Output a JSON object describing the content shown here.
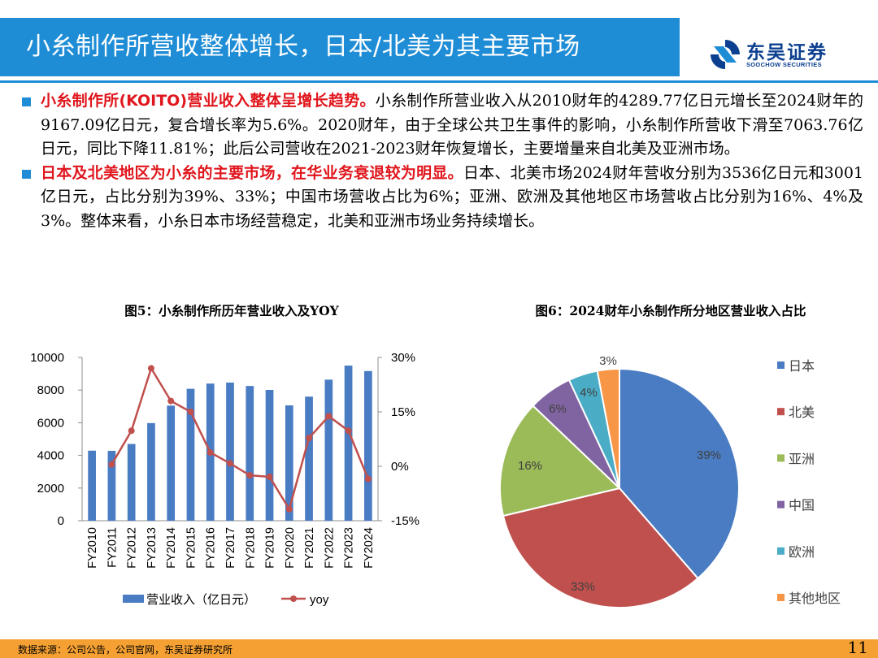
{
  "header": {
    "title": "小糸制作所营收整体增长，日本/北美为其主要市场",
    "logo_name": "东吴证券",
    "logo_sub": "SOOCHOW SECURITIES"
  },
  "paragraphs": [
    {
      "highlight": "小糸制作所(KOITO)营业收入整体呈增长趋势。",
      "body": "小糸制作所营业收入从2010财年的4289.77亿日元增长至2024财年的9167.09亿日元，复合增长率为5.6%。2020财年，由于全球公共卫生事件的影响，小糸制作所营收下滑至7063.76亿日元，同比下降11.81%；此后公司营收在2021-2023财年恢复增长，主要增量来自北美及亚洲市场。"
    },
    {
      "highlight": "日本及北美地区为小糸的主要市场，在华业务衰退较为明显。",
      "body": "日本、北美市场2024财年营收分别为3536亿日元和3001亿日元，占比分别为39%、33%；中国市场营收占比为6%；亚洲、欧洲及其他地区市场营收占比分别为16%、4%及3%。整体来看，小糸日本市场经营稳定，北美和亚洲市场业务持续增长。"
    }
  ],
  "figures": {
    "fig5_title": "图5：小糸制作所历年营业收入及YOY",
    "fig6_title": "图6：2024财年小糸制作所分地区营业收入占比"
  },
  "chart_data": [
    {
      "type": "bar",
      "title": "图5：小糸制作所历年营业收入及YOY",
      "categories": [
        "FY2010",
        "FY2011",
        "FY2012",
        "FY2013",
        "FY2014",
        "FY2015",
        "FY2016",
        "FY2017",
        "FY2018",
        "FY2019",
        "FY2020",
        "FY2021",
        "FY2022",
        "FY2023",
        "FY2024"
      ],
      "series": [
        {
          "name": "营业收入（亿日元）",
          "type": "bar",
          "axis": "left",
          "color": "#4a7cc3",
          "values": [
            4290,
            4280,
            4700,
            5980,
            7050,
            8080,
            8400,
            8460,
            8250,
            8010,
            7064,
            7600,
            8640,
            9500,
            9167
          ]
        },
        {
          "name": "yoy",
          "type": "line",
          "axis": "right",
          "color": "#c0504d",
          "values": [
            null,
            0.5,
            9.8,
            27.0,
            18.0,
            15.0,
            3.8,
            0.8,
            -2.5,
            -2.9,
            -11.81,
            7.8,
            13.8,
            9.8,
            -3.5
          ]
        }
      ],
      "y_left": {
        "min": 0,
        "max": 10000,
        "ticks": [
          "0",
          "2000",
          "4000",
          "6000",
          "8000",
          "10000"
        ]
      },
      "y_right": {
        "min": -15,
        "max": 30,
        "ticks": [
          "-15%",
          "0%",
          "15%",
          "30%"
        ]
      }
    },
    {
      "type": "pie",
      "title": "图6：2024财年小糸制作所分地区营业收入占比",
      "slices": [
        {
          "label": "日本",
          "value": 39,
          "text": "39%",
          "color": "#4a7cc3"
        },
        {
          "label": "北美",
          "value": 33,
          "text": "33%",
          "color": "#c0504d"
        },
        {
          "label": "亚洲",
          "value": 16,
          "text": "16%",
          "color": "#9bbb59"
        },
        {
          "label": "中国",
          "value": 6,
          "text": "6%",
          "color": "#8064a2"
        },
        {
          "label": "欧洲",
          "value": 4,
          "text": "4%",
          "color": "#4bacc6"
        },
        {
          "label": "其他地区",
          "value": 3,
          "text": "3%",
          "color": "#f79646"
        }
      ]
    }
  ],
  "footer": {
    "source": "数据来源：公司公告，公司官网，东吴证券研究所",
    "page": "11"
  }
}
